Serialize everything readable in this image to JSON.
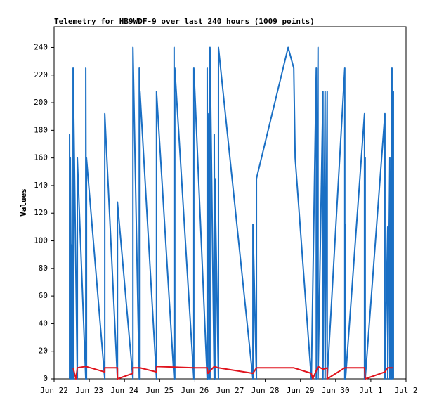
{
  "chart_data": {
    "type": "line",
    "title": "Telemetry for HB9WDF-9 over last 240 hours (1009 points)",
    "y_label": "Values",
    "xlim": [
      0,
      10
    ],
    "xticks": [
      {
        "value": 0,
        "label": "Jun 22"
      },
      {
        "value": 1,
        "label": "Jun 23"
      },
      {
        "value": 2,
        "label": "Jun 24"
      },
      {
        "value": 3,
        "label": "Jun 25"
      },
      {
        "value": 4,
        "label": "Jun 26"
      },
      {
        "value": 5,
        "label": "Jun 27"
      },
      {
        "value": 6,
        "label": "Jun 28"
      },
      {
        "value": 7,
        "label": "Jun 29"
      },
      {
        "value": 8,
        "label": "Jun 30"
      },
      {
        "value": 9,
        "label": "Jul 1"
      },
      {
        "value": 10,
        "label": "Jul 2"
      }
    ],
    "ylim": [
      0,
      255
    ],
    "yticks": [
      0,
      20,
      40,
      60,
      80,
      100,
      120,
      140,
      160,
      180,
      200,
      220,
      240
    ],
    "series": [
      {
        "color": "#1a6fc4",
        "x": [
          0.44,
          0.44,
          0.46,
          0.46,
          0.5,
          0.5,
          0.54,
          0.54,
          0.66,
          0.66,
          0.9,
          0.9,
          0.92,
          0.92,
          1.44,
          1.44,
          1.8,
          1.8,
          2.24,
          2.24,
          2.42,
          2.42,
          2.44,
          2.44,
          2.91,
          2.91,
          3.41,
          3.41,
          3.43,
          3.43,
          3.97,
          3.97,
          4.35,
          4.35,
          4.37,
          4.37,
          4.43,
          4.43,
          4.55,
          4.55,
          4.57,
          4.57,
          4.67,
          4.67,
          5.65,
          5.65,
          5.75,
          5.75,
          6.65,
          6.81,
          6.85,
          7.31,
          7.45,
          7.45,
          7.5,
          7.5,
          7.64,
          7.64,
          7.7,
          7.7,
          7.76,
          7.76,
          8.26,
          8.26,
          8.28,
          8.28,
          8.82,
          8.82,
          8.84,
          8.84,
          9.4,
          9.4,
          9.48,
          9.48,
          9.54,
          9.54,
          9.6,
          9.6,
          9.64,
          9.64
        ],
        "values": [
          0,
          177,
          0,
          160,
          0,
          97,
          0,
          225,
          0,
          160,
          0,
          225,
          0,
          160,
          0,
          192,
          0,
          128,
          0,
          240,
          0,
          225,
          0,
          208,
          0,
          208,
          0,
          240,
          0,
          225,
          0,
          225,
          0,
          225,
          0,
          192,
          0,
          240,
          0,
          177,
          0,
          145,
          0,
          240,
          0,
          112,
          0,
          145,
          240,
          225,
          160,
          0,
          225,
          0,
          240,
          0,
          208,
          0,
          208,
          0,
          208,
          0,
          225,
          0,
          112,
          0,
          192,
          0,
          160,
          0,
          192,
          0,
          110,
          0,
          160,
          0,
          225,
          0,
          208,
          0
        ]
      },
      {
        "color": "#e0141e",
        "x": [
          0.54,
          0.62,
          0.66,
          0.9,
          1.44,
          1.44,
          1.8,
          1.8,
          2.24,
          2.24,
          2.44,
          2.91,
          2.91,
          3.97,
          4.35,
          4.37,
          4.55,
          4.67,
          5.65,
          5.75,
          6.81,
          7.31,
          7.35,
          7.5,
          7.64,
          7.76,
          7.76,
          8.26,
          8.82,
          8.84,
          9.4,
          9.48,
          9.64
        ],
        "values": [
          8,
          0,
          8,
          9,
          5,
          8,
          8,
          0,
          4,
          8,
          8,
          5,
          9,
          8,
          8,
          4,
          9,
          8,
          4,
          8,
          8,
          4,
          0,
          9,
          7,
          8,
          0,
          8,
          8,
          0,
          5,
          8,
          8
        ]
      }
    ]
  }
}
